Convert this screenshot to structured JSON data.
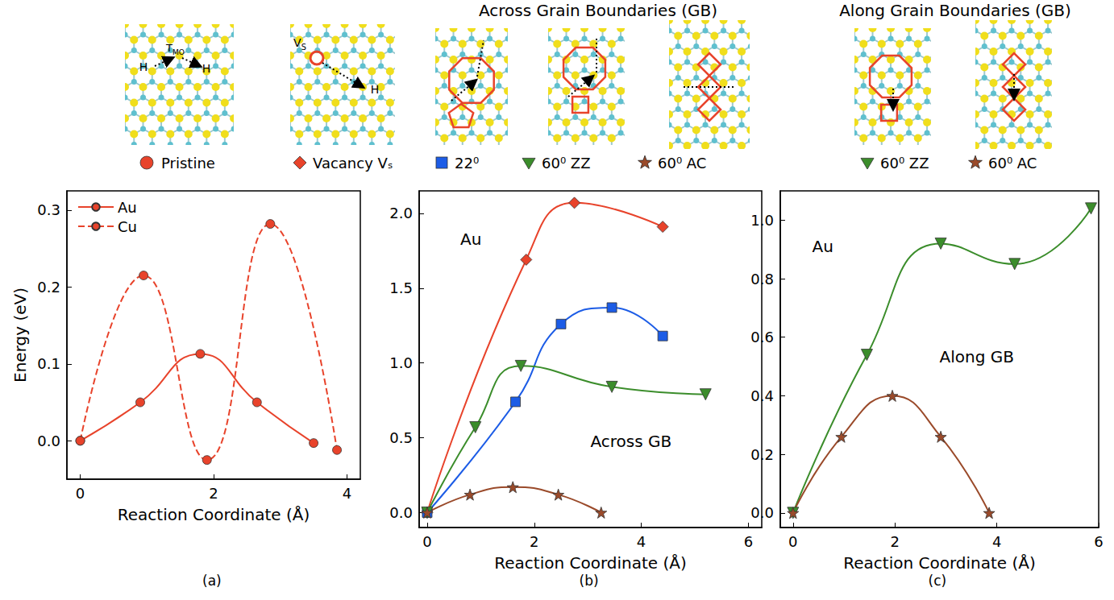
{
  "header": {
    "titles": [
      "Across Grain Boundaries (GB)",
      "Along Grain Boundaries (GB)"
    ]
  },
  "structures": {
    "pristine": {
      "label": "Pristine",
      "marker": "circle",
      "color": "#e8432b",
      "marks": [
        {
          "text": "T",
          "sub": "MO"
        },
        {
          "text": "H"
        },
        {
          "text": "H"
        }
      ]
    },
    "vacancy_marks": [
      {
        "text": "V",
        "sub": "S"
      },
      {
        "text": "H"
      }
    ]
  },
  "chart_data": [
    {
      "type": "line",
      "panel_label": "(a)",
      "x_label": "Reaction Coordinate (Å)",
      "y_label": "Energy (eV)",
      "legend": "upper left",
      "grid": false,
      "xlim": [
        -0.2,
        4.2
      ],
      "xticks": [
        0,
        2,
        4
      ],
      "ylim": [
        -0.05,
        0.325
      ],
      "yticks": [
        {
          "value": 0,
          "label": "0.0"
        },
        {
          "value": 0.1,
          "label": "0.1"
        },
        {
          "value": 0.2,
          "label": "0.2"
        },
        {
          "value": 0.3,
          "label": "0.3"
        }
      ],
      "annotations": [],
      "series": [
        {
          "name": "Au",
          "color": "#e8432b",
          "marker": "circle",
          "line_style": "solid",
          "x": [
            0,
            0.9,
            1.8,
            2.65,
            3.5
          ],
          "values": [
            0,
            0.05,
            0.113,
            0.05,
            -0.003
          ]
        },
        {
          "name": "Cu",
          "color": "#e8432b",
          "marker": "circle",
          "line_style": "dashed",
          "x": [
            0,
            0.95,
            1.9,
            2.85,
            3.85
          ],
          "values": [
            0,
            0.215,
            -0.025,
            0.282,
            -0.012
          ]
        }
      ]
    },
    {
      "type": "line",
      "panel_label": "(b)",
      "x_label": "Reaction Coordinate (Å)",
      "legend": "top",
      "grid": false,
      "xlim": [
        -0.15,
        6.25
      ],
      "xticks": [
        0,
        2,
        4,
        6
      ],
      "ylim": [
        -0.1,
        2.15
      ],
      "yticks": [
        {
          "value": 0,
          "label": "0.0"
        },
        {
          "value": 0.5,
          "label": "0.5"
        },
        {
          "value": 1,
          "label": "1.0"
        },
        {
          "value": 1.5,
          "label": "1.5"
        },
        {
          "value": 2,
          "label": "2.0"
        }
      ],
      "annotations": [
        "Au",
        "Across GB"
      ],
      "series": [
        {
          "name": "Vacancy Vₛ",
          "color": "#e8432b",
          "marker": "diamond",
          "line_style": "solid",
          "x": [
            0,
            1.85,
            2.75,
            4.4
          ],
          "values": [
            0,
            1.69,
            2.07,
            1.91
          ]
        },
        {
          "name": "22⁰",
          "color": "#1c5ce6",
          "marker": "square",
          "line_style": "solid",
          "x": [
            0,
            1.65,
            2.5,
            3.45,
            4.4
          ],
          "values": [
            0,
            0.74,
            1.26,
            1.37,
            1.18
          ]
        },
        {
          "name": "60⁰ ZZ",
          "color": "#3b8d2b",
          "marker": "triangle-down",
          "line_style": "solid",
          "x": [
            0,
            0.9,
            1.75,
            3.45,
            5.2
          ],
          "values": [
            0,
            0.57,
            0.98,
            0.84,
            0.79
          ]
        },
        {
          "name": "60⁰ AC",
          "color": "#9a4a2a",
          "marker": "star",
          "line_style": "solid",
          "x": [
            0,
            0.8,
            1.6,
            2.45,
            3.25
          ],
          "values": [
            0,
            0.12,
            0.17,
            0.12,
            0
          ]
        }
      ]
    },
    {
      "type": "line",
      "panel_label": "(c)",
      "x_label": "Reaction Coordinate (Å)",
      "legend": "top",
      "grid": false,
      "xlim": [
        -0.25,
        6
      ],
      "xticks": [
        0,
        2,
        4,
        6
      ],
      "ylim": [
        -0.05,
        1.1
      ],
      "yticks": [
        {
          "value": 0,
          "label": "0.0"
        },
        {
          "value": 0.2,
          "label": "0.2"
        },
        {
          "value": 0.4,
          "label": "0.4"
        },
        {
          "value": 0.6,
          "label": "0.6"
        },
        {
          "value": 0.8,
          "label": "0.8"
        },
        {
          "value": 1,
          "label": "1.0"
        }
      ],
      "annotations": [
        "Au",
        "Along GB"
      ],
      "series": [
        {
          "name": "60⁰ ZZ",
          "color": "#3b8d2b",
          "marker": "triangle-down",
          "line_style": "solid",
          "x": [
            0,
            1.45,
            2.9,
            4.35,
            5.85
          ],
          "values": [
            0,
            0.54,
            0.92,
            0.85,
            1.04
          ]
        },
        {
          "name": "60⁰ AC",
          "color": "#9a4a2a",
          "marker": "star",
          "line_style": "solid",
          "x": [
            0,
            0.95,
            1.95,
            2.9,
            3.85
          ],
          "values": [
            0,
            0.26,
            0.4,
            0.26,
            0
          ]
        }
      ]
    }
  ]
}
